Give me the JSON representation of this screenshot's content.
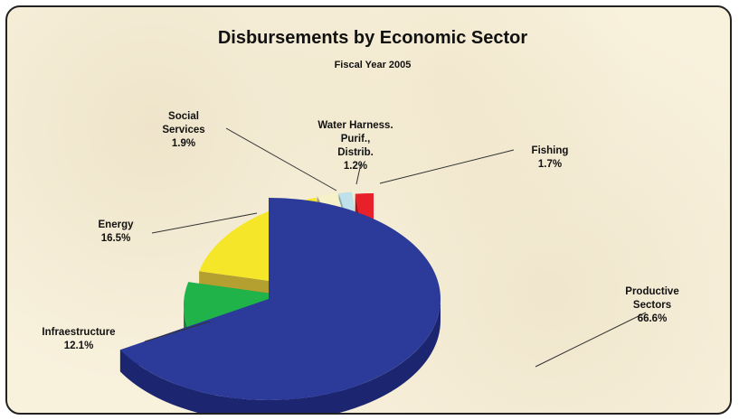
{
  "chart_data": {
    "type": "pie",
    "title": "Disbursements by Economic Sector",
    "subtitle": "Fiscal Year 2005",
    "slices": [
      {
        "label": [
          "Productive",
          "Sectors"
        ],
        "pct_text": "66.6%",
        "value": 66.6,
        "color": "#2c3a99",
        "side": "#1c2670"
      },
      {
        "label": [
          "Infraestructure"
        ],
        "pct_text": "12.1%",
        "value": 12.1,
        "color": "#1fb34a",
        "side": "#168a38"
      },
      {
        "label": [
          "Energy"
        ],
        "pct_text": "16.5%",
        "value": 16.5,
        "color": "#f5e629",
        "side": "#b3a030"
      },
      {
        "label": [
          "Social",
          "Services"
        ],
        "pct_text": "1.9%",
        "value": 1.9,
        "color": "#f6f1c8",
        "side": "#a9a07a"
      },
      {
        "label": [
          "Water Harness.",
          "Purif.,",
          "Distrib."
        ],
        "pct_text": "1.2%",
        "value": 1.2,
        "color": "#bfe1ea",
        "side": "#86aab3"
      },
      {
        "label": [
          "Fishing"
        ],
        "pct_text": "1.7%",
        "value": 1.7,
        "color": "#e8202a",
        "side": "#a81318"
      }
    ],
    "legend": "none"
  }
}
